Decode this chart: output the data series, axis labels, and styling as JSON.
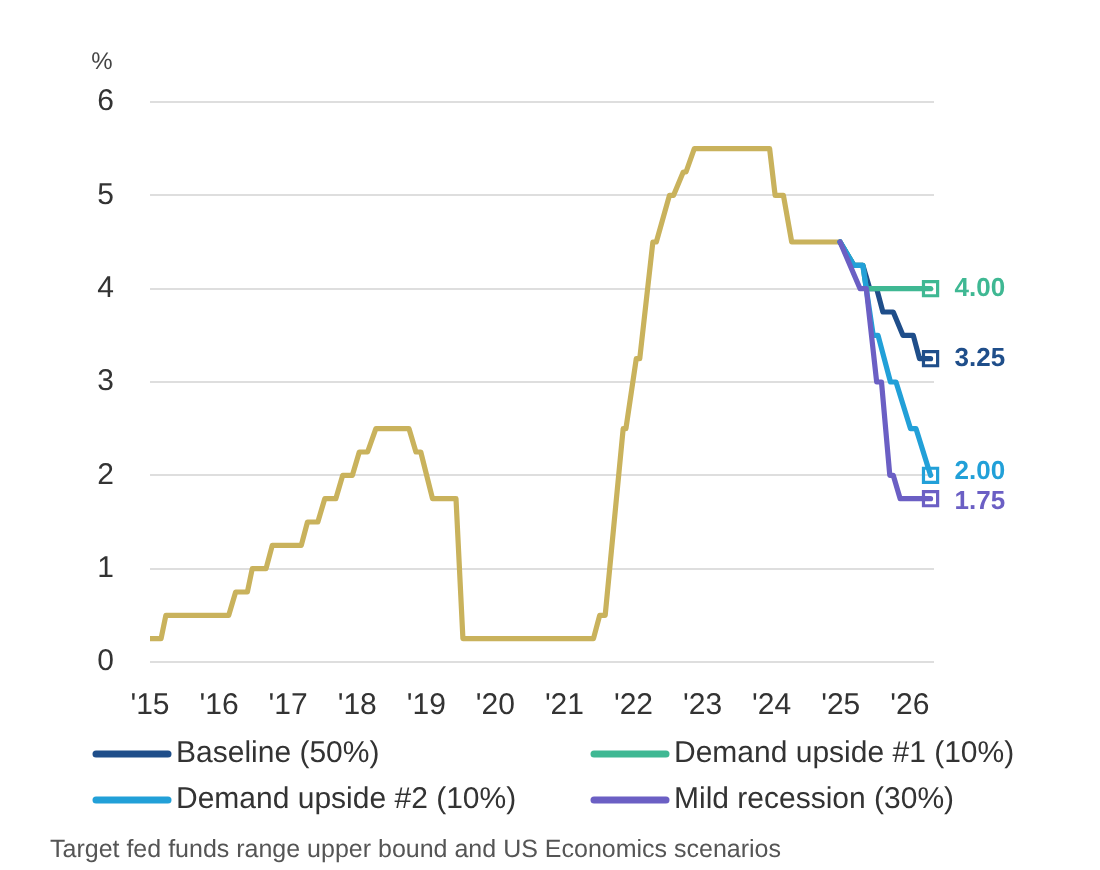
{
  "chart_data": {
    "type": "line",
    "ylabel": "%",
    "annotations": [
      "Target fed funds range upper bound and US Economics scenarios"
    ],
    "xlim": [
      2015,
      2026.35
    ],
    "xticks": [
      {
        "value": 2015,
        "label": "'15"
      },
      {
        "value": 2016,
        "label": "'16"
      },
      {
        "value": 2017,
        "label": "'17"
      },
      {
        "value": 2018,
        "label": "'18"
      },
      {
        "value": 2019,
        "label": "'19"
      },
      {
        "value": 2020,
        "label": "'20"
      },
      {
        "value": 2021,
        "label": "'21"
      },
      {
        "value": 2022,
        "label": "'22"
      },
      {
        "value": 2023,
        "label": "'23"
      },
      {
        "value": 2024,
        "label": "'24"
      },
      {
        "value": 2025,
        "label": "'25"
      },
      {
        "value": 2026,
        "label": "'26"
      }
    ],
    "ylim": [
      0,
      6
    ],
    "yticks": [
      0,
      1,
      2,
      3,
      4,
      5,
      6
    ],
    "grid": "y",
    "legend": "bottom",
    "series": [
      {
        "color": "#c9b25c",
        "x": [
          2015.0,
          2015.16,
          2015.23,
          2016.14,
          2016.24,
          2016.41,
          2016.48,
          2016.68,
          2016.77,
          2017.19,
          2017.28,
          2017.43,
          2017.53,
          2017.69,
          2017.79,
          2017.93,
          2018.03,
          2018.15,
          2018.27,
          2018.75,
          2018.85,
          2018.92,
          2019.09,
          2019.43,
          2019.53,
          2021.42,
          2021.51,
          2021.59,
          2021.85,
          2021.89,
          2022.04,
          2022.09,
          2022.28,
          2022.33,
          2022.52,
          2022.58,
          2022.72,
          2022.76,
          2022.88,
          2023.97,
          2024.05,
          2024.17,
          2024.29,
          2024.99
        ],
        "values": [
          0.25,
          0.25,
          0.5,
          0.5,
          0.75,
          0.75,
          1.0,
          1.0,
          1.25,
          1.25,
          1.5,
          1.5,
          1.75,
          1.75,
          2.0,
          2.0,
          2.25,
          2.25,
          2.5,
          2.5,
          2.25,
          2.25,
          1.75,
          1.75,
          0.25,
          0.25,
          0.5,
          0.5,
          2.5,
          2.5,
          3.25,
          3.25,
          4.5,
          4.5,
          5.0,
          5.0,
          5.25,
          5.25,
          5.5,
          5.5,
          5.0,
          5.0,
          4.5,
          4.5
        ]
      },
      {
        "name": "Baseline (50%)",
        "color": "#1f4e8a",
        "x": [
          2024.99,
          2025.19,
          2025.32,
          2025.42,
          2025.52,
          2025.61,
          2025.76,
          2025.9,
          2026.05,
          2026.14,
          2026.3
        ],
        "values": [
          4.5,
          4.25,
          4.25,
          4.0,
          4.0,
          3.75,
          3.75,
          3.5,
          3.5,
          3.25,
          3.25
        ]
      },
      {
        "name": "Demand upside #1 (10%)",
        "color": "#3fb893",
        "x": [
          2024.99,
          2025.19,
          2025.32,
          2025.37,
          2026.3
        ],
        "values": [
          4.5,
          4.25,
          4.25,
          4.0,
          4.0
        ]
      },
      {
        "name": "Demand upside #2 (10%)",
        "color": "#22a0d8",
        "x": [
          2024.99,
          2025.19,
          2025.32,
          2025.47,
          2025.54,
          2025.72,
          2025.8,
          2026.01,
          2026.09,
          2026.3
        ],
        "values": [
          4.5,
          4.25,
          4.25,
          3.5,
          3.5,
          3.0,
          3.0,
          2.5,
          2.5,
          2.0
        ]
      },
      {
        "name": "Mild recession (30%)",
        "color": "#6b5fc4",
        "x": [
          2024.99,
          2025.28,
          2025.37,
          2025.52,
          2025.59,
          2025.71,
          2025.76,
          2025.86,
          2026.3
        ],
        "values": [
          4.5,
          4.0,
          4.0,
          3.0,
          3.0,
          2.0,
          2.0,
          1.75,
          1.75
        ]
      },
      {
        "type": "scatter",
        "marker": "square",
        "x": [
          2026.3,
          2026.3,
          2026.3,
          2026.3
        ],
        "values": [
          4.0,
          3.25,
          2.0,
          1.75
        ],
        "colors": [
          "#3fb893",
          "#1f4e8a",
          "#22a0d8",
          "#6b5fc4"
        ],
        "value_labels": [
          "4.00",
          "3.25",
          "2.00",
          "1.75"
        ]
      }
    ]
  }
}
